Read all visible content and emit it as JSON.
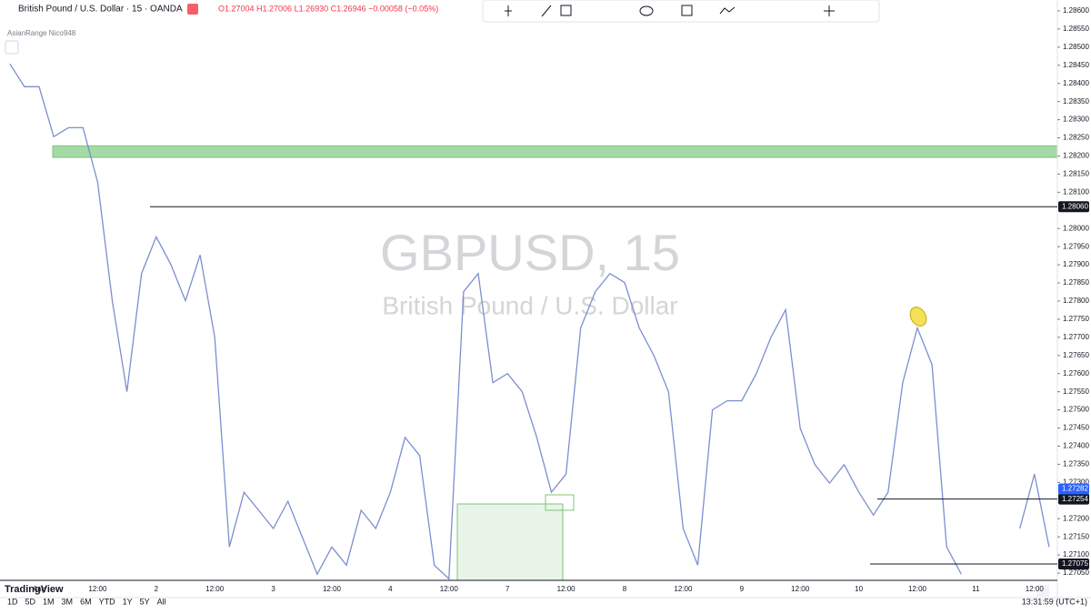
{
  "chart_data": {
    "type": "line",
    "title": "GBPUSD, 15",
    "subtitle": "British Pound / U.S. Dollar",
    "color": "#7b8fd0",
    "categories": [
      null,
      null,
      "Aug",
      null,
      null,
      null,
      "12:00",
      null,
      null,
      null,
      "2",
      null,
      null,
      null,
      "12:00",
      null,
      null,
      null,
      "3",
      null,
      null,
      null,
      "12:00",
      null,
      null,
      null,
      "4",
      null,
      null,
      null,
      "12:00",
      null,
      null,
      null,
      "7",
      null,
      null,
      null,
      "12:00",
      null,
      null,
      null,
      "8",
      null,
      null,
      null,
      "12:00",
      null,
      null,
      null,
      "9",
      null,
      null,
      null,
      "12:00",
      null,
      null,
      null,
      "10",
      null,
      null,
      null,
      "12:00",
      null,
      null,
      null,
      "11",
      null,
      null,
      null,
      "12:00",
      null
    ],
    "values": [
      1.28454,
      1.28391,
      1.28391,
      1.28253,
      1.28278,
      1.28278,
      1.28128,
      1.27801,
      1.2755,
      1.27876,
      1.27977,
      1.27901,
      1.27801,
      1.27927,
      1.277,
      1.27122,
      1.27273,
      1.27223,
      1.27173,
      1.27248,
      1.27147,
      1.27047,
      1.27122,
      1.27072,
      1.27223,
      1.27173,
      1.27273,
      1.27424,
      1.27374,
      1.27072,
      1.27034,
      1.27826,
      1.27876,
      1.27575,
      1.276,
      1.2755,
      1.27424,
      1.27273,
      1.27323,
      1.27726,
      1.27826,
      1.27876,
      1.27851,
      1.27726,
      1.2765,
      1.2755,
      1.27173,
      1.27072,
      1.275,
      1.27525,
      1.27525,
      1.276,
      1.277,
      1.27776,
      1.27449,
      1.27349,
      1.27298,
      1.27349,
      1.27273,
      1.2721,
      1.27273,
      1.27575,
      1.27726,
      1.27625,
      1.27122,
      1.27047,
      null,
      null,
      null,
      1.27173,
      1.27323,
      1.27122
    ],
    "ylim": [
      1.2703,
      1.2863
    ],
    "yticks": [
      {
        "value": 1.2705,
        "label": "1.27050"
      },
      {
        "value": 1.271,
        "label": "1.27100"
      },
      {
        "value": 1.2715,
        "label": "1.27150"
      },
      {
        "value": 1.272,
        "label": "1.27200"
      },
      {
        "value": 1.273,
        "label": "1.27300"
      },
      {
        "value": 1.2735,
        "label": "1.27350"
      },
      {
        "value": 1.274,
        "label": "1.27400"
      },
      {
        "value": 1.2745,
        "label": "1.27450"
      },
      {
        "value": 1.275,
        "label": "1.27500"
      },
      {
        "value": 1.2755,
        "label": "1.27550"
      },
      {
        "value": 1.276,
        "label": "1.27600"
      },
      {
        "value": 1.2765,
        "label": "1.27650"
      },
      {
        "value": 1.277,
        "label": "1.27700"
      },
      {
        "value": 1.2775,
        "label": "1.27750"
      },
      {
        "value": 1.278,
        "label": "1.27800"
      },
      {
        "value": 1.2785,
        "label": "1.27850"
      },
      {
        "value": 1.279,
        "label": "1.27900"
      },
      {
        "value": 1.2795,
        "label": "1.27950"
      },
      {
        "value": 1.28,
        "label": "1.28000"
      },
      {
        "value": 1.281,
        "label": "1.28100"
      },
      {
        "value": 1.2815,
        "label": "1.28150"
      },
      {
        "value": 1.282,
        "label": "1.28200"
      },
      {
        "value": 1.2825,
        "label": "1.28250"
      },
      {
        "value": 1.283,
        "label": "1.28300"
      },
      {
        "value": 1.2835,
        "label": "1.28350"
      },
      {
        "value": 1.284,
        "label": "1.28400"
      },
      {
        "value": 1.2845,
        "label": "1.28450"
      },
      {
        "value": 1.285,
        "label": "1.28500"
      },
      {
        "value": 1.2855,
        "label": "1.28550"
      },
      {
        "value": 1.286,
        "label": "1.28600"
      }
    ],
    "grid": false,
    "zones": [
      {
        "from": 1.28196,
        "to": 1.28228,
        "color": "#8fd08f"
      }
    ],
    "price_lines": [
      {
        "value": 1.2806,
        "label": "1.28060"
      },
      {
        "value": 1.27254,
        "label": "1.27254"
      },
      {
        "value": 1.27075,
        "label": "1.27075"
      }
    ],
    "last_price": {
      "value": 1.27282,
      "label": "1.27282",
      "color": "#2962ff"
    }
  },
  "legend_bar": {
    "symbol": "British Pound / U.S. Dollar · 15 · OANDA",
    "ohlc": "O1.27004 H1.27006 L1.26930 C1.26946 −0.00058 (−0.05%)",
    "indicator": "AsianRange Nico948",
    "logo": "TradingView"
  },
  "bottom_bar": {
    "ranges": [
      "1D",
      "5D",
      "1M",
      "3M",
      "6M",
      "YTD",
      "1Y",
      "5Y",
      "All"
    ],
    "clock": "13:31:59 (UTC+1)"
  }
}
